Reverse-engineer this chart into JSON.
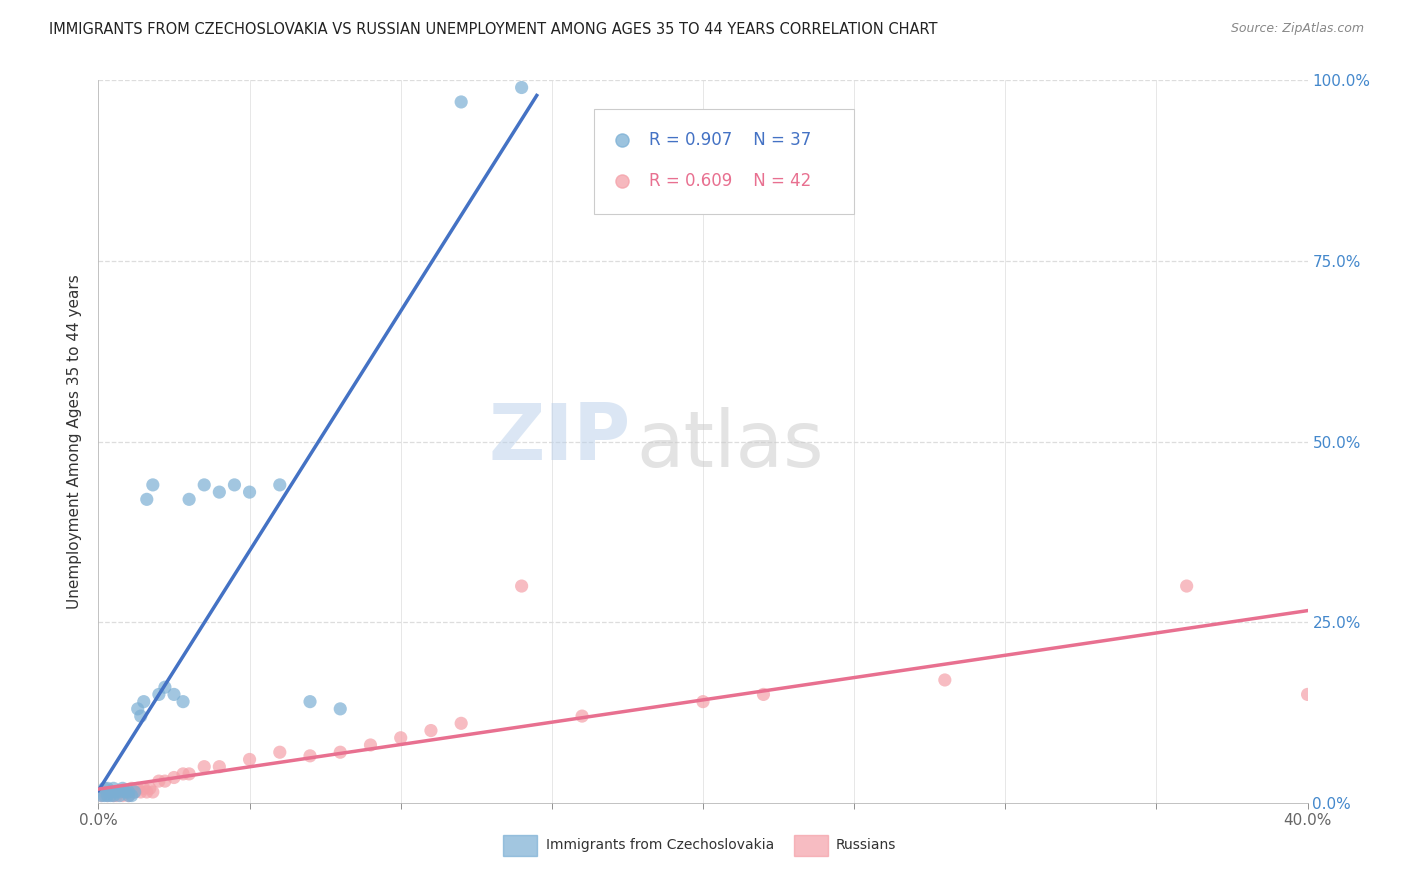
{
  "title": "IMMIGRANTS FROM CZECHOSLOVAKIA VS RUSSIAN UNEMPLOYMENT AMONG AGES 35 TO 44 YEARS CORRELATION CHART",
  "source": "Source: ZipAtlas.com",
  "ylabel": "Unemployment Among Ages 35 to 44 years",
  "watermark_zip": "ZIP",
  "watermark_atlas": "atlas",
  "legend_blue_label": "Immigrants from Czechoslovakia",
  "legend_pink_label": "Russians",
  "legend_blue_R": "R = 0.907",
  "legend_blue_N": "N = 37",
  "legend_pink_R": "R = 0.609",
  "legend_pink_N": "N = 42",
  "blue_color": "#7BAFD4",
  "pink_color": "#F4A0A8",
  "blue_line_color": "#4472C4",
  "pink_line_color": "#E87090",
  "blue_scatter_x": [
    0.001,
    0.002,
    0.002,
    0.003,
    0.003,
    0.004,
    0.004,
    0.005,
    0.005,
    0.006,
    0.007,
    0.007,
    0.008,
    0.009,
    0.01,
    0.01,
    0.011,
    0.012,
    0.013,
    0.014,
    0.015,
    0.016,
    0.018,
    0.02,
    0.022,
    0.025,
    0.028,
    0.03,
    0.035,
    0.04,
    0.045,
    0.05,
    0.06,
    0.07,
    0.08,
    0.12,
    0.14
  ],
  "blue_scatter_y": [
    0.01,
    0.01,
    0.02,
    0.01,
    0.02,
    0.01,
    0.015,
    0.01,
    0.02,
    0.015,
    0.01,
    0.015,
    0.02,
    0.015,
    0.01,
    0.015,
    0.01,
    0.015,
    0.13,
    0.12,
    0.14,
    0.42,
    0.44,
    0.15,
    0.16,
    0.15,
    0.14,
    0.42,
    0.44,
    0.43,
    0.44,
    0.43,
    0.44,
    0.14,
    0.13,
    0.97,
    0.99
  ],
  "pink_scatter_x": [
    0.001,
    0.002,
    0.003,
    0.004,
    0.005,
    0.005,
    0.006,
    0.007,
    0.008,
    0.009,
    0.01,
    0.01,
    0.011,
    0.012,
    0.013,
    0.014,
    0.015,
    0.016,
    0.017,
    0.018,
    0.02,
    0.022,
    0.025,
    0.028,
    0.03,
    0.035,
    0.04,
    0.05,
    0.06,
    0.07,
    0.08,
    0.09,
    0.1,
    0.11,
    0.12,
    0.14,
    0.16,
    0.2,
    0.22,
    0.28,
    0.36,
    0.4
  ],
  "pink_scatter_y": [
    0.01,
    0.015,
    0.01,
    0.015,
    0.01,
    0.015,
    0.01,
    0.015,
    0.01,
    0.015,
    0.01,
    0.015,
    0.02,
    0.015,
    0.02,
    0.015,
    0.02,
    0.015,
    0.02,
    0.015,
    0.03,
    0.03,
    0.035,
    0.04,
    0.04,
    0.05,
    0.05,
    0.06,
    0.07,
    0.065,
    0.07,
    0.08,
    0.09,
    0.1,
    0.11,
    0.3,
    0.12,
    0.14,
    0.15,
    0.17,
    0.3,
    0.15
  ],
  "xlim": [
    0.0,
    0.4
  ],
  "ylim": [
    0.0,
    1.0
  ],
  "x_tick_positions": [
    0.0,
    0.05,
    0.1,
    0.15,
    0.2,
    0.25,
    0.3,
    0.35,
    0.4
  ],
  "y_tick_positions": [
    0.0,
    0.25,
    0.5,
    0.75,
    1.0
  ],
  "background_color": "#FFFFFF",
  "grid_color": "#DDDDDD"
}
